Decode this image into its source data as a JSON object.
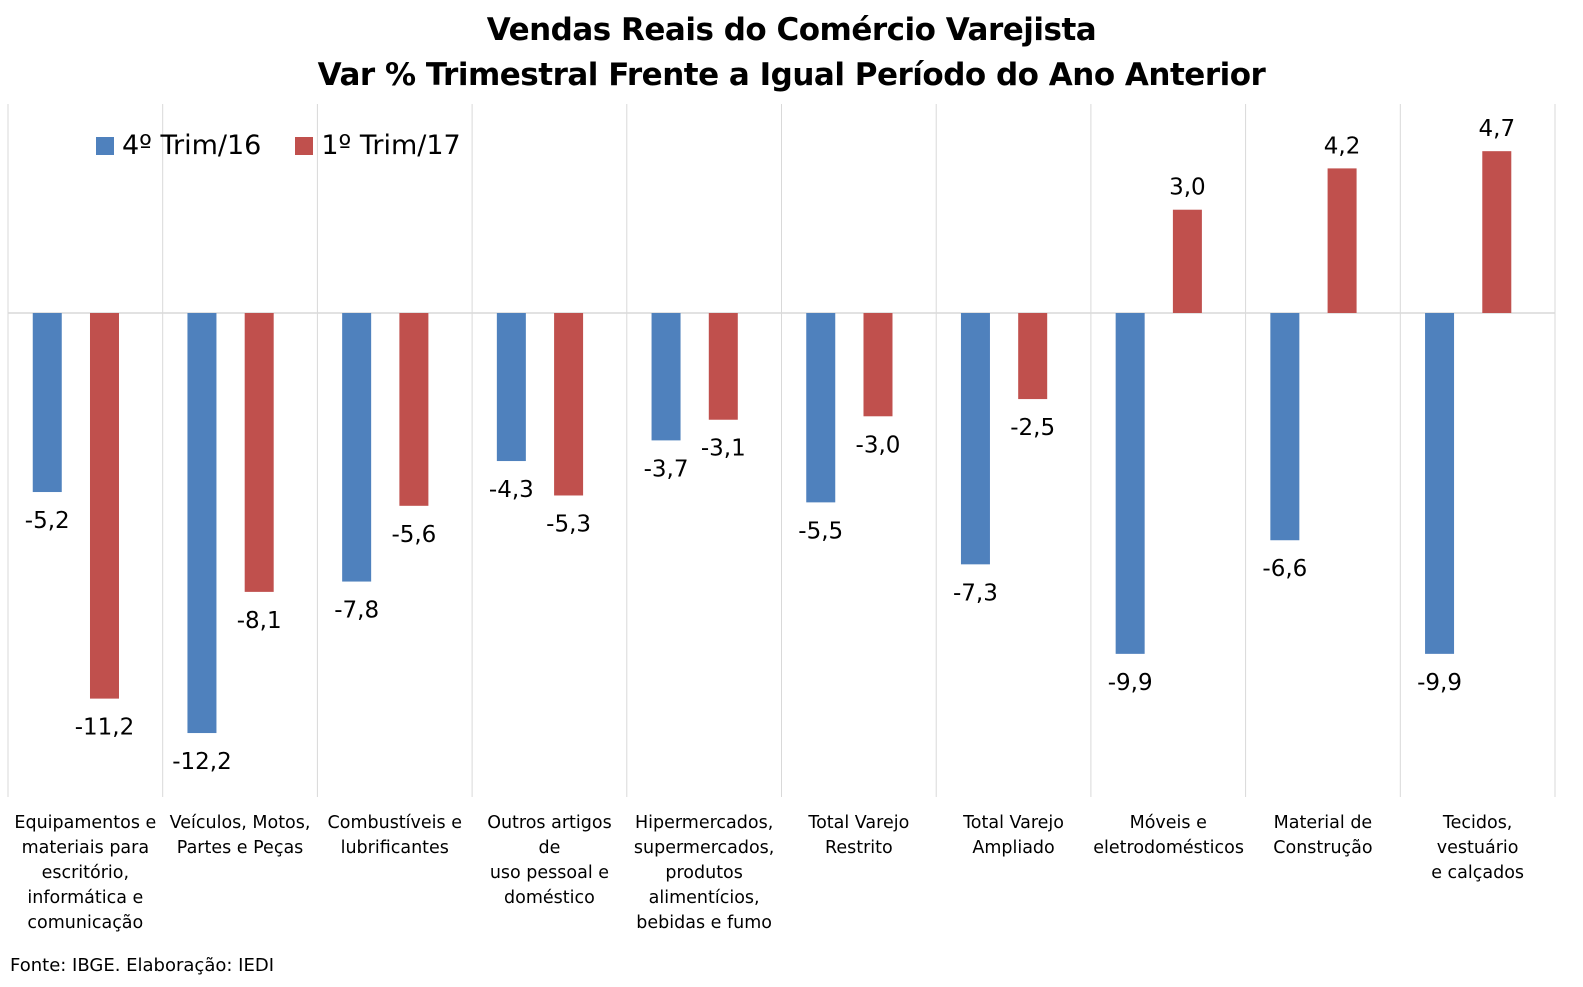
{
  "title_line1": "Vendas Reais do Comércio Varejista",
  "title_line2": "Var % Trimestral Frente a Igual Período do Ano Anterior",
  "source": "Fonte: IBGE. Elaboração: IEDI",
  "colors": {
    "series1": "#4F81BD",
    "series2": "#C0504D",
    "grid": "#d9d9d9"
  },
  "chart_data": {
    "type": "bar",
    "title": "Vendas Reais do Comércio Varejista — Var % Trimestral Frente a Igual Período do Ano Anterior",
    "xlabel": "",
    "ylabel": "",
    "ylim": [
      -14.6,
      10
    ],
    "grid": "vertical category separators",
    "legend_position": "top-left",
    "categories": [
      "Equipamentos e materiais para escritório, informática e comunicação",
      "Veículos, Motos, Partes e Peças",
      "Combustíveis e lubrificantes",
      "Outros artigos de uso pessoal e doméstico",
      "Hipermercados, supermercados, produtos alimentícios, bebidas e fumo",
      "Total Varejo Restrito",
      "Total Varejo Ampliado",
      "Móveis e eletrodomésticos",
      "Material de Construção",
      "Tecidos, vestuário e calçados"
    ],
    "category_lines": [
      [
        "Equipamentos e",
        "materiais para",
        "escritório,",
        "informática e",
        "comunicação"
      ],
      [
        "Veículos, Motos,",
        "Partes e Peças"
      ],
      [
        "Combustíveis e",
        "lubrificantes"
      ],
      [
        "Outros artigos de",
        "uso pessoal e",
        "doméstico"
      ],
      [
        "Hipermercados,",
        "supermercados,",
        "produtos",
        "alimentícios,",
        "bebidas e fumo"
      ],
      [
        "Total Varejo",
        "Restrito"
      ],
      [
        "Total Varejo",
        "Ampliado"
      ],
      [
        "Móveis e",
        "eletrodomésticos"
      ],
      [
        "Material de",
        "Construção"
      ],
      [
        "Tecidos, vestuário",
        "e calçados"
      ]
    ],
    "series": [
      {
        "name": "4º Trim/16",
        "values": [
          -5.2,
          -12.2,
          -7.8,
          -4.3,
          -3.7,
          -5.5,
          -7.3,
          -9.9,
          -6.6,
          -9.9
        ]
      },
      {
        "name": "1º Trim/17",
        "values": [
          -11.2,
          -8.1,
          -5.6,
          -5.3,
          -3.1,
          -3.0,
          -2.5,
          3.0,
          4.2,
          4.7
        ]
      }
    ]
  }
}
